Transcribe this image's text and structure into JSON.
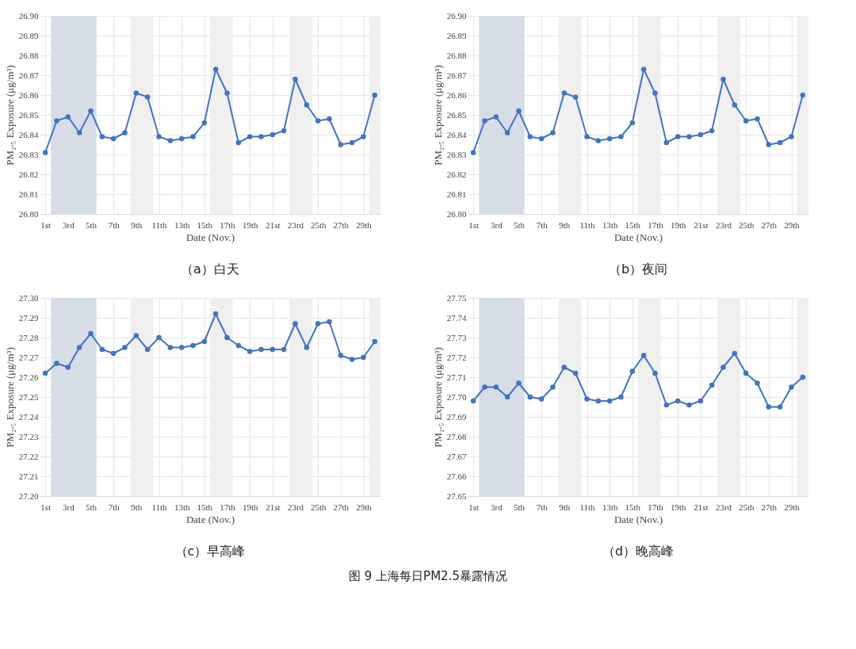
{
  "chart_data": [
    {
      "type": "line",
      "title": "（a）白天",
      "xlabel": "Date (Nov.)",
      "ylabel": "PM₂.₅ Exposure (μg/m³)",
      "x": [
        1,
        2,
        3,
        4,
        5,
        6,
        7,
        8,
        9,
        10,
        11,
        12,
        13,
        14,
        15,
        16,
        17,
        18,
        19,
        20,
        21,
        22,
        23,
        24,
        25,
        26,
        27,
        28,
        29,
        30
      ],
      "series": [
        {
          "color": "#4472c4",
          "values": [
            26.831,
            26.847,
            26.849,
            26.841,
            26.852,
            26.839,
            26.838,
            26.841,
            26.861,
            26.859,
            26.839,
            26.837,
            26.838,
            26.839,
            26.846,
            26.873,
            26.861,
            26.836,
            26.839,
            26.839,
            26.84,
            26.842,
            26.868,
            26.855,
            26.847,
            26.848,
            26.835,
            26.836,
            26.839,
            26.86
          ]
        }
      ],
      "xlim": [
        0.5,
        30.5
      ],
      "xticks": [
        {
          "value": 1,
          "label": "1st"
        },
        {
          "value": 3,
          "label": "3rd"
        },
        {
          "value": 5,
          "label": "5th"
        },
        {
          "value": 7,
          "label": "7th"
        },
        {
          "value": 9,
          "label": "9th"
        },
        {
          "value": 11,
          "label": "11th"
        },
        {
          "value": 13,
          "label": "13th"
        },
        {
          "value": 15,
          "label": "15th"
        },
        {
          "value": 17,
          "label": "17th"
        },
        {
          "value": 19,
          "label": "19th"
        },
        {
          "value": 21,
          "label": "21st"
        },
        {
          "value": 23,
          "label": "23rd"
        },
        {
          "value": 25,
          "label": "25th"
        },
        {
          "value": 27,
          "label": "27th"
        },
        {
          "value": 29,
          "label": "29th"
        }
      ],
      "ylim": [
        26.8,
        26.9
      ],
      "yticks": [
        {
          "value": 26.8,
          "label": "26.80"
        },
        {
          "value": 26.81,
          "label": "26.81"
        },
        {
          "value": 26.82,
          "label": "26.82"
        },
        {
          "value": 26.83,
          "label": "26.83"
        },
        {
          "value": 26.84,
          "label": "26.84"
        },
        {
          "value": 26.85,
          "label": "26.85"
        },
        {
          "value": 26.86,
          "label": "26.86"
        },
        {
          "value": 26.87,
          "label": "26.87"
        },
        {
          "value": 26.88,
          "label": "26.88"
        },
        {
          "value": 26.89,
          "label": "26.89"
        },
        {
          "value": 26.9,
          "label": "26.90"
        }
      ],
      "bands": [
        {
          "axis": "x",
          "from": 1.5,
          "to": 5.5,
          "color": "#d6dde7"
        },
        {
          "axis": "x",
          "from": 8.5,
          "to": 10.5,
          "color": "#efefef"
        },
        {
          "axis": "x",
          "from": 15.5,
          "to": 17.5,
          "color": "#efefef"
        },
        {
          "axis": "x",
          "from": 22.5,
          "to": 24.5,
          "color": "#efefef"
        },
        {
          "axis": "x",
          "from": 29.5,
          "to": 30.5,
          "color": "#efefef"
        }
      ],
      "grid": true,
      "marker": "circle",
      "line_style": "solid"
    },
    {
      "type": "line",
      "title": "（b）夜间",
      "xlabel": "Date (Nov.)",
      "ylabel": "PM₂.₅ Exposure (μg/m³)",
      "x": [
        1,
        2,
        3,
        4,
        5,
        6,
        7,
        8,
        9,
        10,
        11,
        12,
        13,
        14,
        15,
        16,
        17,
        18,
        19,
        20,
        21,
        22,
        23,
        24,
        25,
        26,
        27,
        28,
        29,
        30
      ],
      "series": [
        {
          "color": "#4472c4",
          "values": [
            26.831,
            26.847,
            26.849,
            26.841,
            26.852,
            26.839,
            26.838,
            26.841,
            26.861,
            26.859,
            26.839,
            26.837,
            26.838,
            26.839,
            26.846,
            26.873,
            26.861,
            26.836,
            26.839,
            26.839,
            26.84,
            26.842,
            26.868,
            26.855,
            26.847,
            26.848,
            26.835,
            26.836,
            26.839,
            26.86
          ]
        }
      ],
      "xlim": [
        0.5,
        30.5
      ],
      "xticks": [
        {
          "value": 1,
          "label": "1st"
        },
        {
          "value": 3,
          "label": "3rd"
        },
        {
          "value": 5,
          "label": "5th"
        },
        {
          "value": 7,
          "label": "7th"
        },
        {
          "value": 9,
          "label": "9th"
        },
        {
          "value": 11,
          "label": "11th"
        },
        {
          "value": 13,
          "label": "13th"
        },
        {
          "value": 15,
          "label": "15th"
        },
        {
          "value": 17,
          "label": "17th"
        },
        {
          "value": 19,
          "label": "19th"
        },
        {
          "value": 21,
          "label": "21st"
        },
        {
          "value": 23,
          "label": "23rd"
        },
        {
          "value": 25,
          "label": "25th"
        },
        {
          "value": 27,
          "label": "27th"
        },
        {
          "value": 29,
          "label": "29th"
        }
      ],
      "ylim": [
        26.8,
        26.9
      ],
      "yticks": [
        {
          "value": 26.8,
          "label": "26.80"
        },
        {
          "value": 26.81,
          "label": "26.81"
        },
        {
          "value": 26.82,
          "label": "26.82"
        },
        {
          "value": 26.83,
          "label": "26.83"
        },
        {
          "value": 26.84,
          "label": "26.84"
        },
        {
          "value": 26.85,
          "label": "26.85"
        },
        {
          "value": 26.86,
          "label": "26.86"
        },
        {
          "value": 26.87,
          "label": "26.87"
        },
        {
          "value": 26.88,
          "label": "26.88"
        },
        {
          "value": 26.89,
          "label": "26.89"
        },
        {
          "value": 26.9,
          "label": "26.90"
        }
      ],
      "bands": [
        {
          "axis": "x",
          "from": 1.5,
          "to": 5.5,
          "color": "#d6dde7"
        },
        {
          "axis": "x",
          "from": 8.5,
          "to": 10.5,
          "color": "#efefef"
        },
        {
          "axis": "x",
          "from": 15.5,
          "to": 17.5,
          "color": "#efefef"
        },
        {
          "axis": "x",
          "from": 22.5,
          "to": 24.5,
          "color": "#efefef"
        },
        {
          "axis": "x",
          "from": 29.5,
          "to": 30.5,
          "color": "#efefef"
        }
      ],
      "grid": true,
      "marker": "circle",
      "line_style": "solid"
    },
    {
      "type": "line",
      "title": "（c）早高峰",
      "xlabel": "Date (Nov.)",
      "ylabel": "PM₂.₅ Exposure (μg/m³)",
      "x": [
        1,
        2,
        3,
        4,
        5,
        6,
        7,
        8,
        9,
        10,
        11,
        12,
        13,
        14,
        15,
        16,
        17,
        18,
        19,
        20,
        21,
        22,
        23,
        24,
        25,
        26,
        27,
        28,
        29,
        30
      ],
      "series": [
        {
          "color": "#4472c4",
          "values": [
            27.262,
            27.267,
            27.265,
            27.275,
            27.282,
            27.274,
            27.272,
            27.275,
            27.281,
            27.274,
            27.28,
            27.275,
            27.275,
            27.276,
            27.278,
            27.292,
            27.28,
            27.276,
            27.273,
            27.274,
            27.274,
            27.274,
            27.287,
            27.275,
            27.287,
            27.288,
            27.271,
            27.269,
            27.27,
            27.278
          ]
        }
      ],
      "xlim": [
        0.5,
        30.5
      ],
      "xticks": [
        {
          "value": 1,
          "label": "1st"
        },
        {
          "value": 3,
          "label": "3rd"
        },
        {
          "value": 5,
          "label": "5th"
        },
        {
          "value": 7,
          "label": "7th"
        },
        {
          "value": 9,
          "label": "9th"
        },
        {
          "value": 11,
          "label": "11th"
        },
        {
          "value": 13,
          "label": "13th"
        },
        {
          "value": 15,
          "label": "15th"
        },
        {
          "value": 17,
          "label": "17th"
        },
        {
          "value": 19,
          "label": "19th"
        },
        {
          "value": 21,
          "label": "21st"
        },
        {
          "value": 23,
          "label": "23rd"
        },
        {
          "value": 25,
          "label": "25th"
        },
        {
          "value": 27,
          "label": "27th"
        },
        {
          "value": 29,
          "label": "29th"
        }
      ],
      "ylim": [
        27.2,
        27.3
      ],
      "yticks": [
        {
          "value": 27.2,
          "label": "27.20"
        },
        {
          "value": 27.21,
          "label": "27.21"
        },
        {
          "value": 27.22,
          "label": "27.22"
        },
        {
          "value": 27.23,
          "label": "27.23"
        },
        {
          "value": 27.24,
          "label": "27.24"
        },
        {
          "value": 27.25,
          "label": "27.25"
        },
        {
          "value": 27.26,
          "label": "27.26"
        },
        {
          "value": 27.27,
          "label": "27.27"
        },
        {
          "value": 27.28,
          "label": "27.28"
        },
        {
          "value": 27.29,
          "label": "27.29"
        },
        {
          "value": 27.3,
          "label": "27.30"
        }
      ],
      "bands": [
        {
          "axis": "x",
          "from": 1.5,
          "to": 5.5,
          "color": "#d6dde7"
        },
        {
          "axis": "x",
          "from": 8.5,
          "to": 10.5,
          "color": "#efefef"
        },
        {
          "axis": "x",
          "from": 15.5,
          "to": 17.5,
          "color": "#efefef"
        },
        {
          "axis": "x",
          "from": 22.5,
          "to": 24.5,
          "color": "#efefef"
        },
        {
          "axis": "x",
          "from": 29.5,
          "to": 30.5,
          "color": "#efefef"
        }
      ],
      "grid": true,
      "marker": "circle",
      "line_style": "solid"
    },
    {
      "type": "line",
      "title": "（d）晚高峰",
      "xlabel": "Date (Nov.)",
      "ylabel": "PM₂.₅ Exposure (μg/m³)",
      "x": [
        1,
        2,
        3,
        4,
        5,
        6,
        7,
        8,
        9,
        10,
        11,
        12,
        13,
        14,
        15,
        16,
        17,
        18,
        19,
        20,
        21,
        22,
        23,
        24,
        25,
        26,
        27,
        28,
        29,
        30
      ],
      "series": [
        {
          "color": "#4472c4",
          "values": [
            27.698,
            27.705,
            27.705,
            27.7,
            27.707,
            27.7,
            27.699,
            27.705,
            27.715,
            27.712,
            27.699,
            27.698,
            27.698,
            27.7,
            27.713,
            27.721,
            27.712,
            27.696,
            27.698,
            27.696,
            27.698,
            27.706,
            27.715,
            27.722,
            27.712,
            27.707,
            27.695,
            27.695,
            27.705,
            27.71
          ]
        }
      ],
      "xlim": [
        0.5,
        30.5
      ],
      "xticks": [
        {
          "value": 1,
          "label": "1st"
        },
        {
          "value": 3,
          "label": "3rd"
        },
        {
          "value": 5,
          "label": "5th"
        },
        {
          "value": 7,
          "label": "7th"
        },
        {
          "value": 9,
          "label": "9th"
        },
        {
          "value": 11,
          "label": "11th"
        },
        {
          "value": 13,
          "label": "13th"
        },
        {
          "value": 15,
          "label": "15th"
        },
        {
          "value": 17,
          "label": "17th"
        },
        {
          "value": 19,
          "label": "19th"
        },
        {
          "value": 21,
          "label": "21st"
        },
        {
          "value": 23,
          "label": "23rd"
        },
        {
          "value": 25,
          "label": "25th"
        },
        {
          "value": 27,
          "label": "27th"
        },
        {
          "value": 29,
          "label": "29th"
        }
      ],
      "ylim": [
        27.65,
        27.75
      ],
      "yticks": [
        {
          "value": 27.65,
          "label": "27.65"
        },
        {
          "value": 27.66,
          "label": "27.66"
        },
        {
          "value": 27.67,
          "label": "27.67"
        },
        {
          "value": 27.68,
          "label": "27.68"
        },
        {
          "value": 27.69,
          "label": "27.69"
        },
        {
          "value": 27.7,
          "label": "27.70"
        },
        {
          "value": 27.71,
          "label": "27.71"
        },
        {
          "value": 27.72,
          "label": "27.72"
        },
        {
          "value": 27.73,
          "label": "27.73"
        },
        {
          "value": 27.74,
          "label": "27.74"
        },
        {
          "value": 27.75,
          "label": "27.75"
        }
      ],
      "bands": [
        {
          "axis": "x",
          "from": 1.5,
          "to": 5.5,
          "color": "#d6dde7"
        },
        {
          "axis": "x",
          "from": 8.5,
          "to": 10.5,
          "color": "#efefef"
        },
        {
          "axis": "x",
          "from": 15.5,
          "to": 17.5,
          "color": "#efefef"
        },
        {
          "axis": "x",
          "from": 22.5,
          "to": 24.5,
          "color": "#efefef"
        },
        {
          "axis": "x",
          "from": 29.5,
          "to": 30.5,
          "color": "#efefef"
        }
      ],
      "grid": true,
      "marker": "circle",
      "line_style": "solid",
      "annotations": [
        "图 9 上海每日PM2.5暴露情况"
      ]
    }
  ]
}
